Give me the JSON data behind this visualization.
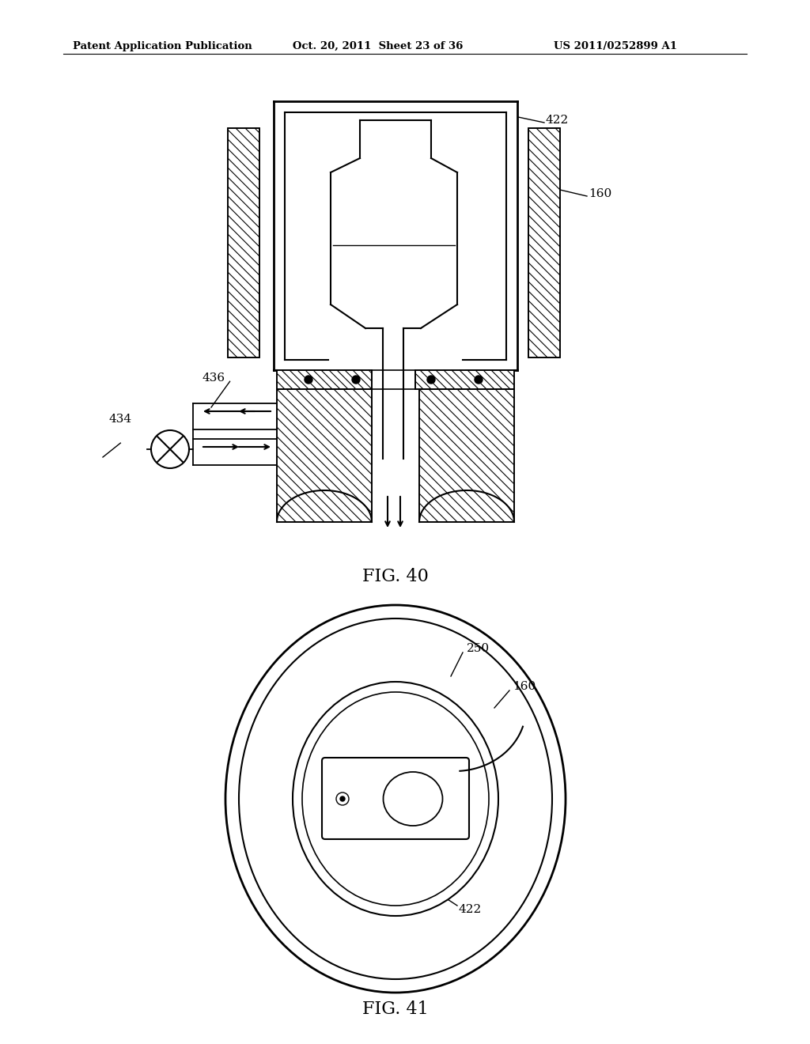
{
  "bg_color": "#ffffff",
  "header_left": "Patent Application Publication",
  "header_center": "Oct. 20, 2011  Sheet 23 of 36",
  "header_right": "US 2011/0252899 A1",
  "fig40_label": "FIG. 40",
  "fig41_label": "FIG. 41"
}
